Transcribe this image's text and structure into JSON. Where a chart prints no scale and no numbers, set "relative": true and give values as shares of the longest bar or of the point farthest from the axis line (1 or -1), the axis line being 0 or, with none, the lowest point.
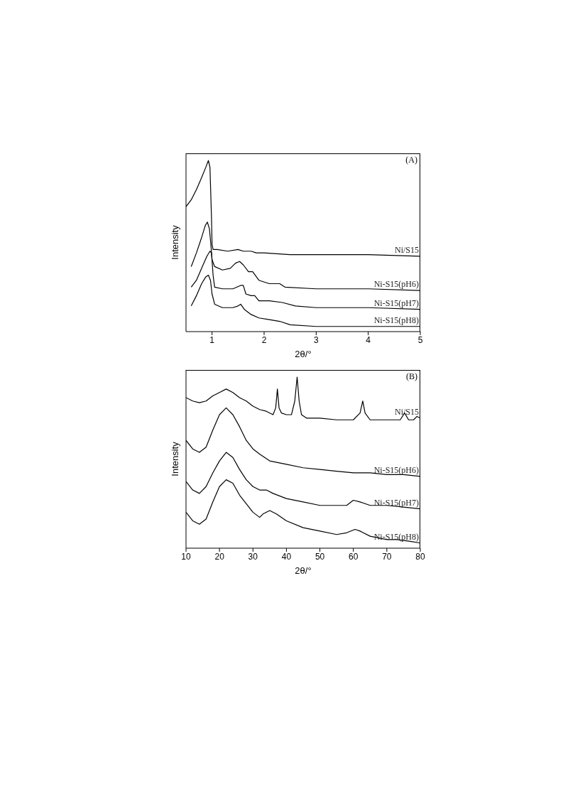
{
  "chart_data": [
    {
      "type": "line",
      "relative": true,
      "xlabel": "2θ/°",
      "ylabel": "Intensity",
      "annotations": [
        "(A)"
      ],
      "xlim": [
        0.5,
        5
      ],
      "xticks": [
        1,
        2,
        3,
        4,
        5
      ],
      "series": [
        {
          "name": "Ni/S15",
          "color": "#000000",
          "x": [
            0.5,
            0.6,
            0.7,
            0.8,
            0.88,
            0.93,
            0.96,
            0.99,
            1.0,
            1.02,
            1.1,
            1.3,
            1.5,
            1.6,
            1.75,
            1.85,
            2.0,
            2.5,
            3,
            4,
            5
          ],
          "values": [
            0.73,
            0.77,
            0.83,
            0.9,
            0.96,
            1.0,
            0.96,
            0.66,
            0.51,
            0.48,
            0.48,
            0.47,
            0.48,
            0.47,
            0.47,
            0.46,
            0.46,
            0.45,
            0.45,
            0.45,
            0.44
          ]
        },
        {
          "name": "Ni-S15(pH6)",
          "color": "#000000",
          "x": [
            0.6,
            0.7,
            0.8,
            0.87,
            0.91,
            0.95,
            0.98,
            1.0,
            1.05,
            1.2,
            1.35,
            1.45,
            1.53,
            1.6,
            1.7,
            1.78,
            1.9,
            2.1,
            2.3,
            2.4,
            3,
            4,
            5
          ],
          "values": [
            0.38,
            0.46,
            0.55,
            0.62,
            0.64,
            0.6,
            0.5,
            0.42,
            0.38,
            0.36,
            0.37,
            0.4,
            0.41,
            0.39,
            0.35,
            0.35,
            0.3,
            0.28,
            0.28,
            0.26,
            0.25,
            0.25,
            0.24
          ]
        },
        {
          "name": "Ni-S15(pH7)",
          "color": "#000000",
          "x": [
            0.6,
            0.7,
            0.8,
            0.9,
            0.96,
            0.99,
            1.02,
            1.05,
            1.2,
            1.4,
            1.55,
            1.6,
            1.65,
            1.75,
            1.82,
            1.9,
            2.1,
            2.35,
            2.6,
            3,
            4,
            5
          ],
          "values": [
            0.26,
            0.3,
            0.37,
            0.44,
            0.47,
            0.46,
            0.33,
            0.26,
            0.25,
            0.25,
            0.27,
            0.27,
            0.22,
            0.21,
            0.21,
            0.18,
            0.18,
            0.17,
            0.15,
            0.14,
            0.14,
            0.13
          ]
        },
        {
          "name": "Ni-S15(pH8)",
          "color": "#000000",
          "x": [
            0.6,
            0.7,
            0.8,
            0.88,
            0.93,
            0.97,
            1.0,
            1.05,
            1.2,
            1.4,
            1.5,
            1.55,
            1.62,
            1.75,
            1.9,
            2.1,
            2.3,
            2.5,
            3,
            4,
            5
          ],
          "values": [
            0.15,
            0.21,
            0.28,
            0.32,
            0.33,
            0.3,
            0.22,
            0.16,
            0.14,
            0.14,
            0.15,
            0.16,
            0.13,
            0.1,
            0.08,
            0.07,
            0.06,
            0.04,
            0.03,
            0.03,
            0.03
          ]
        }
      ]
    },
    {
      "type": "line",
      "relative": true,
      "xlabel": "2θ/°",
      "ylabel": "Intensity",
      "annotations": [
        "(B)"
      ],
      "xlim": [
        10,
        80
      ],
      "xticks": [
        10,
        20,
        30,
        40,
        50,
        60,
        70,
        80
      ],
      "series": [
        {
          "name": "Ni/S15",
          "color": "#000000",
          "x": [
            10,
            12,
            14,
            16,
            18,
            20,
            22,
            24,
            26,
            28,
            30,
            32,
            34,
            36,
            36.8,
            37.3,
            37.8,
            38.5,
            40,
            41.5,
            42.5,
            43.2,
            43.8,
            44.5,
            46,
            50,
            55,
            60,
            62,
            62.8,
            63.5,
            65,
            70,
            74,
            75.3,
            76.5,
            78,
            79,
            80
          ],
          "values": [
            0.88,
            0.86,
            0.85,
            0.86,
            0.89,
            0.91,
            0.93,
            0.91,
            0.88,
            0.86,
            0.83,
            0.81,
            0.8,
            0.78,
            0.82,
            0.93,
            0.82,
            0.79,
            0.78,
            0.78,
            0.86,
            1.0,
            0.86,
            0.78,
            0.76,
            0.76,
            0.75,
            0.75,
            0.79,
            0.86,
            0.79,
            0.75,
            0.75,
            0.75,
            0.79,
            0.75,
            0.75,
            0.77,
            0.76
          ]
        },
        {
          "name": "Ni-S15(pH6)",
          "color": "#000000",
          "x": [
            10,
            12,
            14,
            16,
            18,
            20,
            22,
            24,
            26,
            28,
            30,
            32,
            35,
            40,
            45,
            50,
            55,
            60,
            65,
            70,
            75,
            80
          ],
          "values": [
            0.63,
            0.58,
            0.56,
            0.59,
            0.69,
            0.78,
            0.82,
            0.78,
            0.71,
            0.63,
            0.58,
            0.55,
            0.51,
            0.49,
            0.47,
            0.46,
            0.45,
            0.44,
            0.44,
            0.43,
            0.43,
            0.42
          ]
        },
        {
          "name": "Ni-S15(pH7)",
          "color": "#000000",
          "x": [
            10,
            12,
            14,
            16,
            18,
            20,
            22,
            24,
            26,
            28,
            30,
            32,
            34,
            36,
            40,
            45,
            50,
            55,
            58,
            60,
            62,
            65,
            70,
            75,
            80
          ],
          "values": [
            0.39,
            0.34,
            0.32,
            0.36,
            0.44,
            0.51,
            0.56,
            0.53,
            0.46,
            0.4,
            0.36,
            0.34,
            0.34,
            0.32,
            0.29,
            0.27,
            0.25,
            0.25,
            0.25,
            0.28,
            0.27,
            0.25,
            0.25,
            0.24,
            0.23
          ]
        },
        {
          "name": "Ni-S15(pH8)",
          "color": "#000000",
          "x": [
            10,
            12,
            14,
            16,
            18,
            20,
            22,
            24,
            26,
            28,
            30,
            32,
            33,
            35,
            37,
            40,
            45,
            50,
            55,
            58,
            60.5,
            62,
            65,
            70,
            73,
            77,
            80
          ],
          "values": [
            0.21,
            0.16,
            0.14,
            0.17,
            0.27,
            0.36,
            0.4,
            0.38,
            0.31,
            0.26,
            0.21,
            0.18,
            0.2,
            0.22,
            0.2,
            0.16,
            0.12,
            0.1,
            0.08,
            0.09,
            0.11,
            0.1,
            0.07,
            0.05,
            0.05,
            0.04,
            0.03
          ]
        }
      ]
    }
  ]
}
